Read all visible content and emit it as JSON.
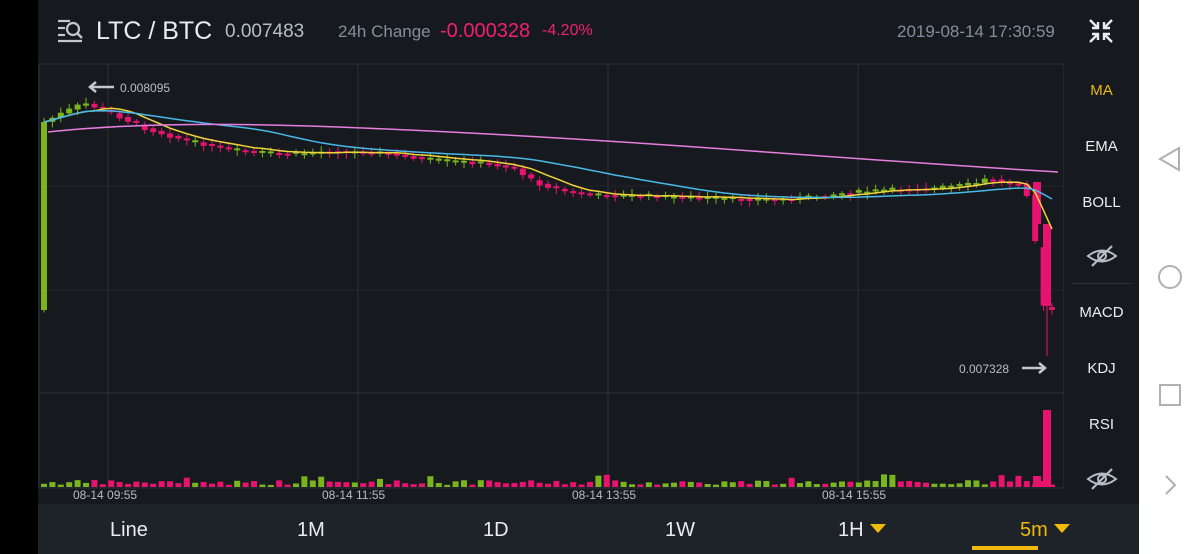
{
  "header": {
    "pair": "LTC / BTC",
    "last_price": "0.007483",
    "change_label": "24h Change",
    "change_value": "-0.000328",
    "change_pct": "-4.20%",
    "datetime": "2019-08-14 17:30:59",
    "icons": {
      "pair_icon": "search-list-icon",
      "collapse_icon": "collapse-arrows-icon"
    }
  },
  "indicators": {
    "main": [
      "MA",
      "EMA",
      "BOLL"
    ],
    "sub": [
      "MACD",
      "KDJ",
      "RSI"
    ],
    "active": "MA",
    "hide_icon": "eye-slash-icon"
  },
  "chart": {
    "high_label": "0.008095",
    "low_label": "0.007328",
    "time_labels": [
      "08-14 09:55",
      "08-14 11:55",
      "08-14 13:55",
      "08-14 15:55"
    ]
  },
  "timeframes": {
    "items": [
      "Line",
      "1M",
      "1D",
      "1W",
      "1H",
      "5m"
    ],
    "active": "5m"
  },
  "colors": {
    "up": "#7ab51d",
    "down": "#e8126f",
    "ma_fast": "#f0d43a",
    "ma_mid": "#49b9e8",
    "ma_slow": "#e87de0",
    "accent": "#f0b90b"
  },
  "system_nav": [
    "back-icon",
    "home-icon",
    "recents-icon",
    "chevron-right-icon"
  ]
}
